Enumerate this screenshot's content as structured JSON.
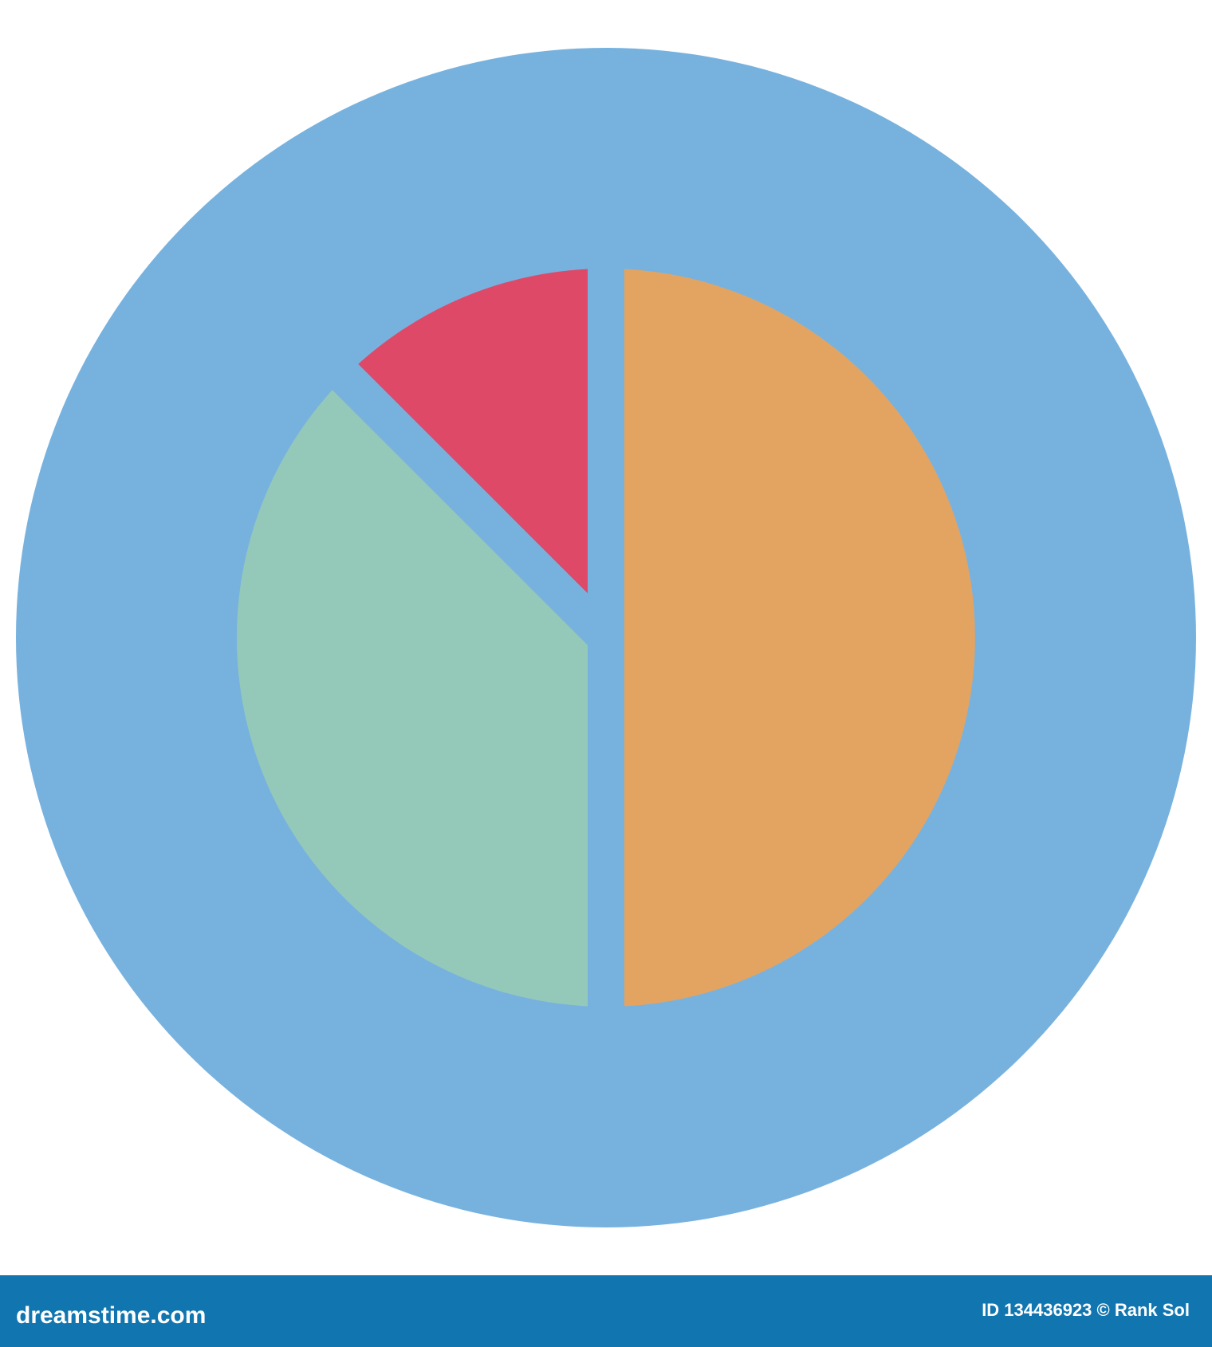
{
  "chart_data": {
    "type": "pie",
    "values": [
      50,
      37.5,
      12.5
    ],
    "colors": [
      "#e3a462",
      "#94c9b9",
      "#df4968"
    ],
    "background_color": "#77b2df"
  },
  "footer": {
    "site": "dreamstime.com",
    "credit": "ID 134436923 © Rank Sol"
  }
}
